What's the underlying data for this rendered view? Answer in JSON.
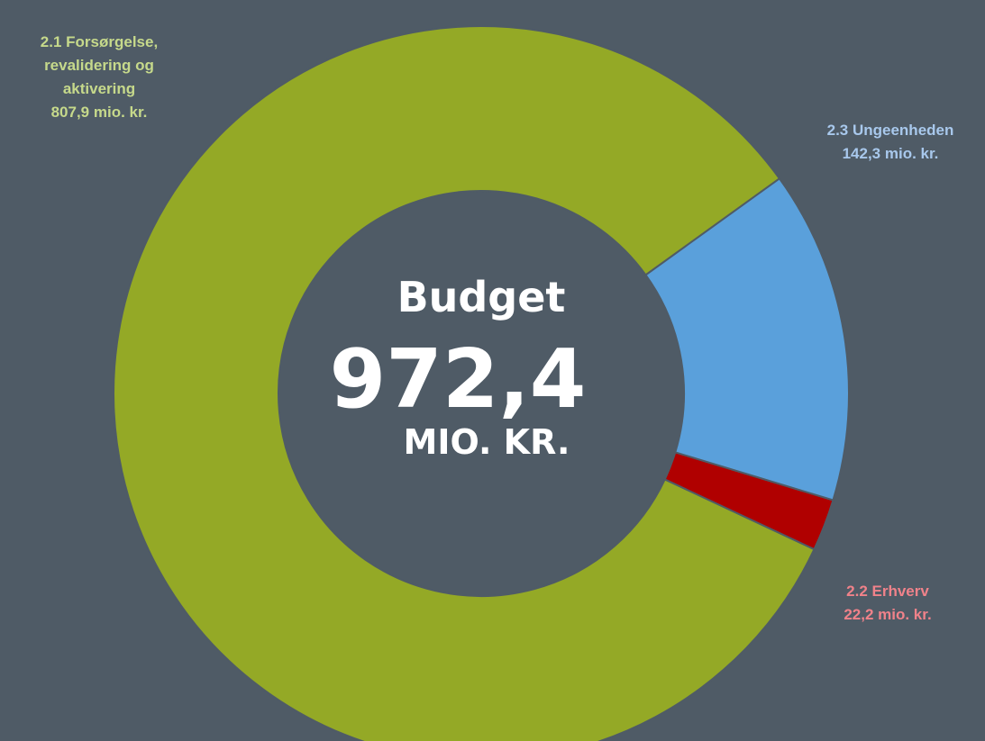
{
  "chart_data": {
    "type": "donut",
    "categories": [
      "2.1 Forsørgelse, revalidering og aktivering",
      "2.2 Erhverv",
      "2.3 Ungeenheden"
    ],
    "values": [
      807.9,
      22.2,
      142.3
    ],
    "value_labels": [
      "807,9 mio. kr.",
      "22,2 mio. kr.",
      "142,3 mio. kr."
    ],
    "colors": [
      "#94a926",
      "#b00000",
      "#5aa0db"
    ],
    "center_title": "Budget",
    "total": 972.4,
    "total_label": "972,4",
    "total_unit": "MIO. KR."
  }
}
